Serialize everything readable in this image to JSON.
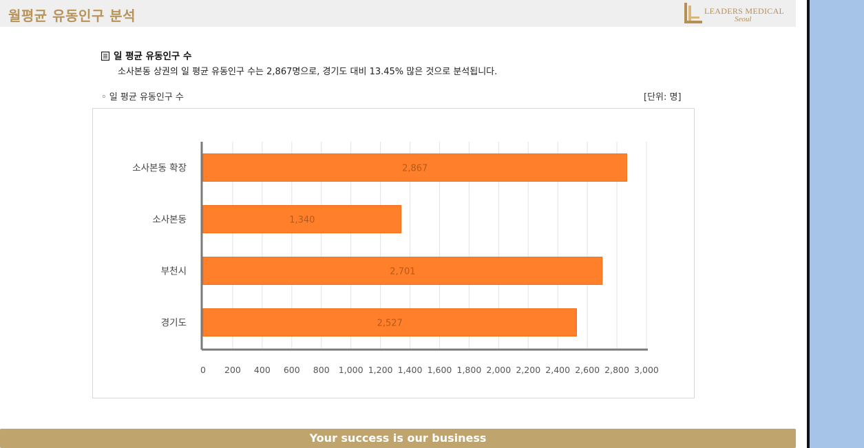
{
  "header": {
    "title": "월평균 유동인구 분석",
    "logo": {
      "text": "LEADERS MEDICAL",
      "sub": "Seoul"
    }
  },
  "section": {
    "heading": "일 평균 유동인구 수",
    "description": "소사본동 상권의 일 평균 유동인구 수는 2,867명으로, 경기도 대비 13.45% 많은 것으로 분석됩니다.",
    "chart_label": "◦ 일 평균 유동인구 수",
    "unit_label": "[단위: 명]"
  },
  "footer": {
    "text": "Your success is our business"
  },
  "colors": {
    "bar": "#ff7f2a",
    "bar_edge": "#f0731c",
    "header_title": "#b8935a",
    "footer": "#c0a46e",
    "side_panel": "#a6c4e8"
  },
  "chart_data": {
    "type": "bar",
    "orientation": "horizontal",
    "categories": [
      "소사본동 확장",
      "소사본동",
      "부천시",
      "경기도"
    ],
    "values": [
      2867,
      1340,
      2701,
      2527
    ],
    "value_labels": [
      "2,867",
      "1,340",
      "2,701",
      "2,527"
    ],
    "xlim": [
      0,
      3000
    ],
    "x_ticks": [
      "0",
      "200",
      "400",
      "600",
      "800",
      "1,000",
      "1,200",
      "1,400",
      "1,600",
      "1,800",
      "2,000",
      "2,200",
      "2,400",
      "2,600",
      "2,800",
      "3,000"
    ],
    "grid": "vertical"
  }
}
